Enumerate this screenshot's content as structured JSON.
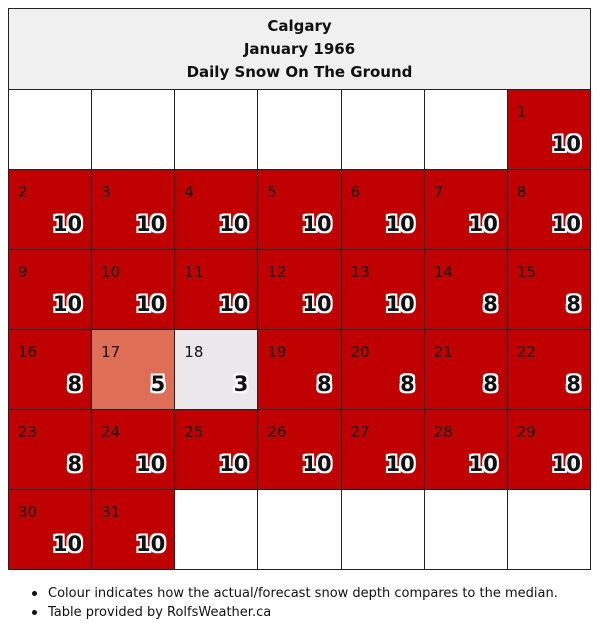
{
  "header": {
    "city": "Calgary",
    "month": "January 1966",
    "metric": "Daily Snow On The Ground"
  },
  "chart_data": {
    "type": "table",
    "title": "Calgary January 1966 Daily Snow On The Ground",
    "first_weekday_offset": 6,
    "days": [
      {
        "day": "1",
        "value": "10",
        "color": "#c00000"
      },
      {
        "day": "2",
        "value": "10",
        "color": "#c00000"
      },
      {
        "day": "3",
        "value": "10",
        "color": "#c00000"
      },
      {
        "day": "4",
        "value": "10",
        "color": "#c00000"
      },
      {
        "day": "5",
        "value": "10",
        "color": "#c00000"
      },
      {
        "day": "6",
        "value": "10",
        "color": "#c00000"
      },
      {
        "day": "7",
        "value": "10",
        "color": "#c00000"
      },
      {
        "day": "8",
        "value": "10",
        "color": "#c00000"
      },
      {
        "day": "9",
        "value": "10",
        "color": "#c00000"
      },
      {
        "day": "10",
        "value": "10",
        "color": "#c00000"
      },
      {
        "day": "11",
        "value": "10",
        "color": "#c00000"
      },
      {
        "day": "12",
        "value": "10",
        "color": "#c00000"
      },
      {
        "day": "13",
        "value": "10",
        "color": "#c00000"
      },
      {
        "day": "14",
        "value": "8",
        "color": "#c00000"
      },
      {
        "day": "15",
        "value": "8",
        "color": "#c00000"
      },
      {
        "day": "16",
        "value": "8",
        "color": "#c00000"
      },
      {
        "day": "17",
        "value": "5",
        "color": "#de6e56"
      },
      {
        "day": "18",
        "value": "3",
        "color": "#ece7ea"
      },
      {
        "day": "19",
        "value": "8",
        "color": "#c00000"
      },
      {
        "day": "20",
        "value": "8",
        "color": "#c00000"
      },
      {
        "day": "21",
        "value": "8",
        "color": "#c00000"
      },
      {
        "day": "22",
        "value": "8",
        "color": "#c00000"
      },
      {
        "day": "23",
        "value": "8",
        "color": "#c00000"
      },
      {
        "day": "24",
        "value": "10",
        "color": "#c00000"
      },
      {
        "day": "25",
        "value": "10",
        "color": "#c00000"
      },
      {
        "day": "26",
        "value": "10",
        "color": "#c00000"
      },
      {
        "day": "27",
        "value": "10",
        "color": "#c00000"
      },
      {
        "day": "28",
        "value": "10",
        "color": "#c00000"
      },
      {
        "day": "29",
        "value": "10",
        "color": "#c00000"
      },
      {
        "day": "30",
        "value": "10",
        "color": "#c00000"
      },
      {
        "day": "31",
        "value": "10",
        "color": "#c00000"
      }
    ]
  },
  "footnotes": [
    "Colour indicates how the actual/forecast snow depth compares to the median.",
    "Table provided by RolfsWeather.ca"
  ]
}
